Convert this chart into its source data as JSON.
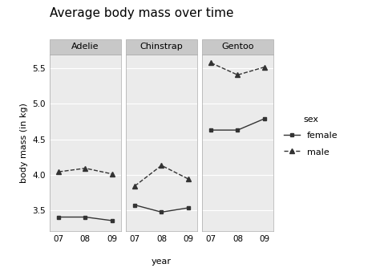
{
  "title": "Average body mass over time",
  "xlabel": "year",
  "ylabel": "body mass (in kg)",
  "panels": [
    "Adelie",
    "Chinstrap",
    "Gentoo"
  ],
  "years": [
    "07",
    "08",
    "09"
  ],
  "female": {
    "Adelie": [
      3.4,
      3.4,
      3.35
    ],
    "Chinstrap": [
      3.57,
      3.47,
      3.53
    ],
    "Gentoo": [
      4.63,
      4.63,
      4.79
    ]
  },
  "male": {
    "Adelie": [
      4.04,
      4.09,
      4.01
    ],
    "Chinstrap": [
      3.84,
      4.13,
      3.94
    ],
    "Gentoo": [
      5.58,
      5.41,
      5.52
    ]
  },
  "ylim": [
    3.2,
    5.7
  ],
  "yticks": [
    3.5,
    4.0,
    4.5,
    5.0,
    5.5
  ],
  "panel_bg": "#EBEBEB",
  "outer_bg": "#FFFFFF",
  "grid_color": "#FFFFFF",
  "strip_bg": "#C8C8C8",
  "border_color": "#AAAAAA",
  "line_color": "#333333",
  "female_marker": "s",
  "male_marker": "^",
  "female_linestyle": "-",
  "male_linestyle": "--",
  "title_fontsize": 11,
  "axis_label_fontsize": 8,
  "tick_fontsize": 7.5,
  "strip_fontsize": 8,
  "legend_fontsize": 8
}
